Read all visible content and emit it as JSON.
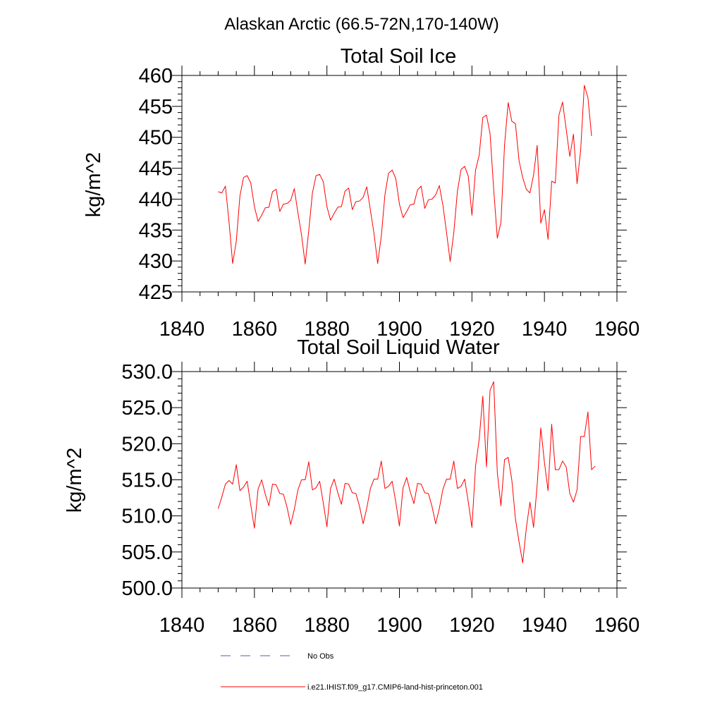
{
  "suptitle": "Alaskan Arctic (66.5-72N,170-140W)",
  "chart_data": [
    {
      "type": "line",
      "title": "Total Soil Ice",
      "xlabel": "",
      "ylabel": "kg/m^2",
      "xlim": [
        1840,
        1960
      ],
      "ylim": [
        425,
        460
      ],
      "x_ticks": [
        1840,
        1860,
        1880,
        1900,
        1920,
        1940,
        1960
      ],
      "y_ticks": [
        425,
        430,
        435,
        440,
        445,
        450,
        455,
        460
      ],
      "y_tick_labels": [
        "425",
        "430",
        "435",
        "440",
        "445",
        "450",
        "455",
        "460"
      ],
      "series": [
        {
          "name": "i.e21.IHIST.f09_g17.CMIP6-land-hist-princeton.001",
          "color": "#ff0000",
          "x_start": 1850,
          "x_step": 1,
          "values": [
            441.2,
            441.0,
            442.1,
            436.3,
            429.6,
            433.2,
            440.5,
            443.5,
            443.8,
            442.6,
            438.8,
            436.4,
            437.4,
            438.6,
            438.7,
            441.2,
            441.6,
            438.0,
            439.2,
            439.3,
            439.8,
            441.7,
            437.8,
            434.2,
            429.5,
            435.0,
            441.0,
            443.8,
            444.0,
            442.8,
            438.8,
            436.6,
            437.7,
            438.7,
            438.8,
            441.3,
            441.8,
            438.3,
            439.6,
            439.7,
            440.3,
            442.0,
            438.2,
            434.4,
            429.6,
            434.0,
            440.7,
            444.2,
            444.7,
            443.3,
            439.2,
            437.0,
            438.0,
            439.1,
            439.2,
            441.5,
            442.1,
            438.5,
            439.9,
            440.0,
            440.7,
            442.2,
            439.0,
            434.6,
            429.9,
            434.6,
            441.3,
            444.8,
            445.3,
            443.7,
            437.4,
            444.7,
            447.1,
            453.2,
            453.6,
            450.6,
            441.6,
            433.7,
            436.2,
            448.8,
            455.6,
            452.6,
            452.2,
            446.2,
            443.5,
            441.6,
            441.0,
            443.9,
            448.7,
            436.1,
            438.3,
            433.5,
            442.9,
            442.6,
            453.6,
            455.7,
            451.3,
            446.9,
            450.5,
            442.5,
            448.0,
            458.4,
            456.4,
            450.2
          ]
        }
      ]
    },
    {
      "type": "line",
      "title": "Total Soil Liquid Water",
      "xlabel": "",
      "ylabel": "kg/m^2",
      "xlim": [
        1840,
        1960
      ],
      "ylim": [
        500,
        530
      ],
      "x_ticks": [
        1840,
        1860,
        1880,
        1900,
        1920,
        1940,
        1960
      ],
      "y_ticks": [
        500,
        505,
        510,
        515,
        520,
        525,
        530
      ],
      "y_tick_labels": [
        "500.0",
        "505.0",
        "510.0",
        "515.0",
        "520.0",
        "525.0",
        "530.0"
      ],
      "series": [
        {
          "name": "i.e21.IHIST.f09_g17.CMIP6-land-hist-princeton.001",
          "color": "#ff0000",
          "x_start": 1850,
          "x_step": 1,
          "values": [
            511.0,
            512.6,
            514.4,
            514.9,
            514.4,
            517.1,
            513.5,
            514.0,
            514.8,
            511.5,
            508.3,
            513.7,
            515.0,
            513.0,
            511.4,
            514.4,
            514.3,
            513.1,
            513.0,
            511.2,
            508.8,
            510.9,
            513.6,
            515.0,
            515.0,
            517.5,
            513.6,
            513.9,
            514.8,
            511.8,
            508.5,
            513.8,
            515.1,
            513.2,
            511.6,
            514.5,
            514.4,
            513.2,
            513.1,
            511.3,
            508.9,
            511.1,
            513.8,
            515.1,
            515.1,
            517.6,
            513.8,
            514.1,
            514.8,
            511.9,
            508.6,
            513.9,
            515.3,
            513.3,
            511.7,
            514.5,
            514.4,
            513.2,
            513.1,
            511.3,
            508.9,
            511.0,
            513.7,
            515.1,
            515.1,
            517.6,
            513.8,
            514.1,
            515.1,
            511.9,
            508.4,
            516.9,
            520.6,
            526.6,
            516.8,
            527.4,
            528.6,
            516.0,
            511.4,
            517.8,
            518.1,
            515.0,
            509.6,
            506.4,
            503.5,
            508.3,
            511.9,
            508.4,
            514.3,
            522.2,
            517.4,
            513.5,
            522.7,
            516.4,
            516.4,
            517.6,
            516.8,
            513.1,
            511.9,
            513.6,
            521.0,
            521.0,
            524.4,
            516.4,
            516.9
          ]
        }
      ]
    }
  ],
  "legend": [
    {
      "label": "No Obs",
      "style": "dashed",
      "color": "#5a5aa8"
    },
    {
      "label": "i.e21.IHIST.f09_g17.CMIP6-land-hist-princeton.001",
      "style": "solid",
      "color": "#ff0000"
    }
  ]
}
